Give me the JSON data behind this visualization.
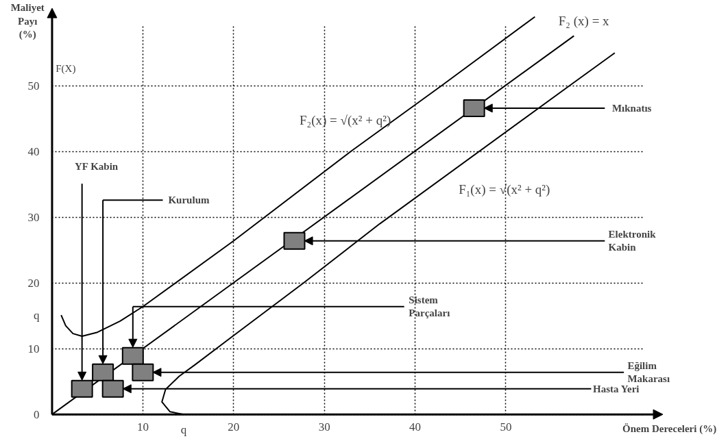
{
  "chart_data": {
    "type": "line",
    "xlabel": "Önem Dereceleri (%)",
    "ylabel": "Maliyet Payı (%)",
    "annotations": [
      "F(X)",
      {
        "text": "YF Kabin",
        "x": 3.3,
        "y": 5.2
      },
      "Kurulum",
      {
        "text": "Hasta Yeri",
        "x": 7.8,
        "y": 3.9
      },
      "Sistem Parçaları",
      {
        "text": "Eğilim Makarası",
        "x": 11.1,
        "y": 6.4
      },
      {
        "text": "Elektronik Kabin",
        "x": 27.8,
        "y": 26.4
      },
      {
        "text": "Mıknatıs",
        "x": 47.6,
        "y": 46.6
      }
    ],
    "xlim": [
      -5.7,
      73.3
    ],
    "ylim": [
      -4.1,
      63.0
    ],
    "xticks": [
      10,
      {
        "value": 14.5,
        "label": "q"
      },
      20,
      30,
      40,
      50
    ],
    "yticks": [
      0,
      10,
      {
        "value": 15.1,
        "label": "q"
      },
      20,
      30,
      40,
      50
    ],
    "grid": true,
    "line_style": "solid",
    "series": [
      {
        "name": "F₂(x) = √(x² + q²)",
        "color": "#000000",
        "x": [
          1.0,
          1.5,
          2.3,
          3.3,
          5.0,
          7.5,
          10.0,
          20.0,
          32.9,
          42.9,
          53.2
        ],
        "values": [
          15.1,
          13.5,
          12.3,
          11.9,
          12.5,
          14.2,
          16.4,
          26.4,
          40.0,
          50.0,
          60.5
        ]
      },
      {
        "name": "F₂ (x) = x",
        "color": "#000000",
        "x": [
          0,
          57.5
        ],
        "values": [
          0,
          57.6
        ]
      },
      {
        "name": "F₁(x) = √(x² + q²)",
        "color": "#000000",
        "x": [
          14.5,
          13.0,
          12.1,
          12.5,
          14.0,
          15.7,
          20.0,
          27.7,
          36.1,
          57.0,
          62.0
        ],
        "values": [
          0,
          0.4,
          1.9,
          3.8,
          5.8,
          7.5,
          12.0,
          20.0,
          29.0,
          50.0,
          55.0
        ]
      },
      {
        "type": "scatter",
        "marker": "square",
        "color": "#808080",
        "x": [
          3.3,
          5.6,
          6.7,
          8.9,
          10.0,
          26.7,
          46.5
        ],
        "values": [
          3.9,
          6.4,
          3.9,
          8.9,
          6.4,
          26.4,
          46.6
        ]
      }
    ]
  }
}
